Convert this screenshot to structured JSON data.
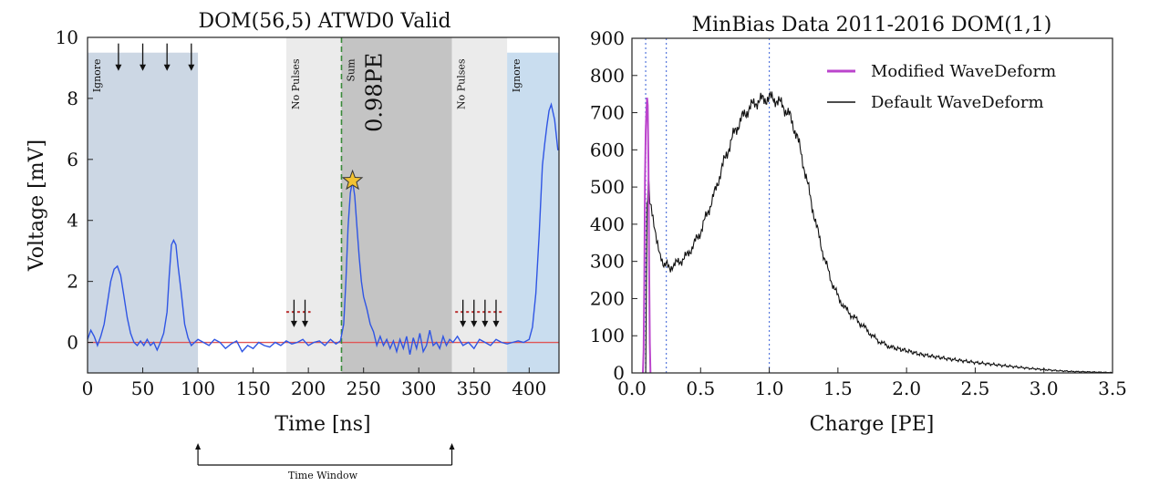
{
  "chart_data": [
    {
      "type": "line",
      "title": "DOM(56,5) ATWD0 Valid",
      "xlabel": "Time [ns]",
      "ylabel": "Voltage [mV]",
      "xlim": [
        0,
        427
      ],
      "ylim": [
        -1,
        10
      ],
      "xticks": [
        0,
        50,
        100,
        150,
        200,
        250,
        300,
        350,
        400
      ],
      "yticks": [
        0,
        2,
        4,
        6,
        8,
        10
      ],
      "grid": false,
      "colors": {
        "waveform": "#2f55e4",
        "baseline": "#e05555",
        "ignore_region": "#ccd7e4",
        "ignore_region_right": "#c9ddef",
        "no_pulses_region": "#ebebeb",
        "sum_region": "#c4c4c4",
        "sum_start_line": "#3a8a3a",
        "star": "#f2c232"
      },
      "regions": [
        {
          "label": "Ignore",
          "kind": "ignore",
          "x": [
            0,
            100
          ]
        },
        {
          "label": "No Pulses",
          "kind": "no_pulses",
          "x": [
            180,
            230
          ]
        },
        {
          "label": "Sum",
          "kind": "sum",
          "x": [
            230,
            330
          ]
        },
        {
          "label": "No Pulses",
          "kind": "no_pulses",
          "x": [
            330,
            380
          ]
        },
        {
          "label": "Ignore",
          "kind": "ignore_right",
          "x": [
            380,
            427
          ]
        }
      ],
      "sum_charge_label": "0.98PE",
      "sum_start_x": 230,
      "baseline_y": 0,
      "pulse_marker": {
        "x": 240,
        "y": 5.3,
        "symbol": "star"
      },
      "arrow_markers": [
        {
          "x": 28,
          "y_top": 9.8,
          "y_bottom": 8.9
        },
        {
          "x": 50,
          "y_top": 9.8,
          "y_bottom": 8.9
        },
        {
          "x": 72,
          "y_top": 9.8,
          "y_bottom": 8.9
        },
        {
          "x": 94,
          "y_top": 9.8,
          "y_bottom": 8.9
        },
        {
          "x": 187,
          "y_top": 1.4,
          "y_bottom": 0.5
        },
        {
          "x": 197,
          "y_top": 1.4,
          "y_bottom": 0.5
        },
        {
          "x": 340,
          "y_top": 1.4,
          "y_bottom": 0.5
        },
        {
          "x": 350,
          "y_top": 1.4,
          "y_bottom": 0.5
        },
        {
          "x": 360,
          "y_top": 1.4,
          "y_bottom": 0.5
        },
        {
          "x": 370,
          "y_top": 1.4,
          "y_bottom": 0.5
        }
      ],
      "dotted_baselines": [
        {
          "x": [
            180,
            202
          ],
          "y": 1.0
        },
        {
          "x": [
            333,
            377
          ],
          "y": 1.0
        }
      ],
      "series": [
        {
          "points": [
            [
              0,
              0.1
            ],
            [
              3,
              0.4
            ],
            [
              6,
              0.2
            ],
            [
              9,
              -0.1
            ],
            [
              12,
              0.2
            ],
            [
              15,
              0.6
            ],
            [
              18,
              1.3
            ],
            [
              21,
              2.0
            ],
            [
              24,
              2.4
            ],
            [
              27,
              2.5
            ],
            [
              30,
              2.2
            ],
            [
              33,
              1.5
            ],
            [
              36,
              0.8
            ],
            [
              39,
              0.3
            ],
            [
              42,
              0.0
            ],
            [
              45,
              -0.1
            ],
            [
              48,
              0.05
            ],
            [
              51,
              -0.1
            ],
            [
              54,
              0.1
            ],
            [
              57,
              -0.1
            ],
            [
              60,
              0.0
            ],
            [
              63,
              -0.25
            ],
            [
              66,
              0.0
            ],
            [
              69,
              0.3
            ],
            [
              72,
              1.0
            ],
            [
              74,
              2.2
            ],
            [
              76,
              3.2
            ],
            [
              78,
              3.35
            ],
            [
              80,
              3.2
            ],
            [
              82,
              2.5
            ],
            [
              85,
              1.6
            ],
            [
              88,
              0.6
            ],
            [
              91,
              0.15
            ],
            [
              94,
              -0.1
            ],
            [
              97,
              0.0
            ],
            [
              100,
              0.1
            ],
            [
              105,
              0.0
            ],
            [
              110,
              -0.1
            ],
            [
              115,
              0.1
            ],
            [
              120,
              0.0
            ],
            [
              125,
              -0.2
            ],
            [
              130,
              -0.05
            ],
            [
              135,
              0.05
            ],
            [
              140,
              -0.3
            ],
            [
              145,
              -0.1
            ],
            [
              150,
              -0.2
            ],
            [
              155,
              0.0
            ],
            [
              160,
              -0.1
            ],
            [
              165,
              -0.15
            ],
            [
              170,
              0.0
            ],
            [
              175,
              -0.1
            ],
            [
              180,
              0.05
            ],
            [
              185,
              -0.05
            ],
            [
              190,
              0.0
            ],
            [
              195,
              0.1
            ],
            [
              200,
              -0.1
            ],
            [
              205,
              0.0
            ],
            [
              210,
              0.05
            ],
            [
              215,
              -0.1
            ],
            [
              220,
              0.1
            ],
            [
              225,
              -0.05
            ],
            [
              229,
              0.05
            ],
            [
              232,
              0.6
            ],
            [
              234,
              2.0
            ],
            [
              236,
              3.8
            ],
            [
              238,
              4.9
            ],
            [
              240,
              5.3
            ],
            [
              242,
              4.8
            ],
            [
              244,
              3.8
            ],
            [
              246,
              2.8
            ],
            [
              248,
              2.0
            ],
            [
              250,
              1.5
            ],
            [
              253,
              1.1
            ],
            [
              256,
              0.6
            ],
            [
              259,
              0.35
            ],
            [
              262,
              -0.1
            ],
            [
              265,
              0.2
            ],
            [
              268,
              -0.1
            ],
            [
              271,
              0.1
            ],
            [
              274,
              -0.2
            ],
            [
              277,
              0.05
            ],
            [
              280,
              -0.3
            ],
            [
              283,
              0.1
            ],
            [
              286,
              -0.2
            ],
            [
              289,
              0.2
            ],
            [
              292,
              -0.4
            ],
            [
              295,
              0.15
            ],
            [
              298,
              -0.2
            ],
            [
              301,
              0.3
            ],
            [
              304,
              -0.3
            ],
            [
              307,
              -0.1
            ],
            [
              310,
              0.4
            ],
            [
              313,
              -0.1
            ],
            [
              316,
              0.0
            ],
            [
              319,
              -0.2
            ],
            [
              322,
              0.2
            ],
            [
              325,
              -0.1
            ],
            [
              328,
              0.1
            ],
            [
              331,
              0.0
            ],
            [
              335,
              0.2
            ],
            [
              340,
              -0.1
            ],
            [
              345,
              0.0
            ],
            [
              350,
              -0.2
            ],
            [
              355,
              0.1
            ],
            [
              360,
              0.0
            ],
            [
              365,
              -0.1
            ],
            [
              370,
              0.1
            ],
            [
              375,
              0.0
            ],
            [
              380,
              -0.05
            ],
            [
              385,
              0.0
            ],
            [
              390,
              0.05
            ],
            [
              395,
              0.0
            ],
            [
              400,
              0.1
            ],
            [
              403,
              0.5
            ],
            [
              406,
              1.6
            ],
            [
              409,
              3.5
            ],
            [
              412,
              5.8
            ],
            [
              414,
              6.5
            ],
            [
              416,
              7.1
            ],
            [
              418,
              7.6
            ],
            [
              420,
              7.8
            ],
            [
              423,
              7.3
            ],
            [
              426,
              6.3
            ]
          ]
        }
      ]
    },
    {
      "type": "line",
      "title": "MinBias Data 2011-2016 DOM(1,1)",
      "xlabel": "Charge [PE]",
      "ylabel": "",
      "xlim": [
        0.0,
        3.5
      ],
      "ylim": [
        0,
        900
      ],
      "xticks": [
        "0.0",
        "0.5",
        "1.0",
        "1.5",
        "2.0",
        "2.5",
        "3.0",
        "3.5"
      ],
      "yticks": [
        0,
        100,
        200,
        300,
        400,
        500,
        600,
        700,
        800,
        900
      ],
      "grid": false,
      "legend_position": "top-right",
      "vertical_dotted_lines": [
        0.1,
        0.25,
        1.0
      ],
      "vline_color": "#5577dd",
      "series": [
        {
          "name": "Modified WaveDeform",
          "color": "#bb44cc",
          "points": [
            [
              0.08,
              0
            ],
            [
              0.085,
              60
            ],
            [
              0.09,
              260
            ],
            [
              0.095,
              520
            ],
            [
              0.1,
              650
            ],
            [
              0.105,
              700
            ],
            [
              0.11,
              740
            ],
            [
              0.115,
              720
            ],
            [
              0.12,
              560
            ],
            [
              0.125,
              300
            ],
            [
              0.13,
              80
            ],
            [
              0.135,
              0
            ]
          ]
        },
        {
          "name": "Default WaveDeform",
          "color": "#111111",
          "points": [
            [
              0.1,
              0
            ],
            [
              0.105,
              200
            ],
            [
              0.11,
              460
            ],
            [
              0.115,
              480
            ],
            [
              0.12,
              520
            ],
            [
              0.13,
              470
            ],
            [
              0.14,
              440
            ],
            [
              0.16,
              390
            ],
            [
              0.18,
              350
            ],
            [
              0.2,
              320
            ],
            [
              0.22,
              300
            ],
            [
              0.25,
              290
            ],
            [
              0.28,
              285
            ],
            [
              0.3,
              290
            ],
            [
              0.35,
              300
            ],
            [
              0.4,
              315
            ],
            [
              0.45,
              345
            ],
            [
              0.5,
              380
            ],
            [
              0.55,
              430
            ],
            [
              0.6,
              480
            ],
            [
              0.65,
              545
            ],
            [
              0.7,
              600
            ],
            [
              0.75,
              650
            ],
            [
              0.8,
              685
            ],
            [
              0.85,
              710
            ],
            [
              0.9,
              728
            ],
            [
              0.95,
              735
            ],
            [
              1.0,
              740
            ],
            [
              1.05,
              735
            ],
            [
              1.1,
              718
            ],
            [
              1.15,
              690
            ],
            [
              1.2,
              640
            ],
            [
              1.25,
              560
            ],
            [
              1.3,
              470
            ],
            [
              1.35,
              385
            ],
            [
              1.4,
              310
            ],
            [
              1.45,
              250
            ],
            [
              1.5,
              205
            ],
            [
              1.55,
              175
            ],
            [
              1.6,
              155
            ],
            [
              1.65,
              138
            ],
            [
              1.7,
              120
            ],
            [
              1.75,
              100
            ],
            [
              1.8,
              85
            ],
            [
              1.85,
              75
            ],
            [
              1.9,
              68
            ],
            [
              2.0,
              60
            ],
            [
              2.1,
              50
            ],
            [
              2.2,
              44
            ],
            [
              2.3,
              38
            ],
            [
              2.4,
              33
            ],
            [
              2.5,
              28
            ],
            [
              2.6,
              24
            ],
            [
              2.7,
              20
            ],
            [
              2.8,
              16
            ],
            [
              2.9,
              12
            ],
            [
              3.0,
              9
            ],
            [
              3.1,
              6
            ],
            [
              3.2,
              4
            ],
            [
              3.3,
              3
            ],
            [
              3.4,
              2
            ],
            [
              3.5,
              1
            ]
          ]
        }
      ]
    }
  ],
  "annotation": {
    "label": "Time Window",
    "x_start": 100,
    "x_end": 330
  }
}
